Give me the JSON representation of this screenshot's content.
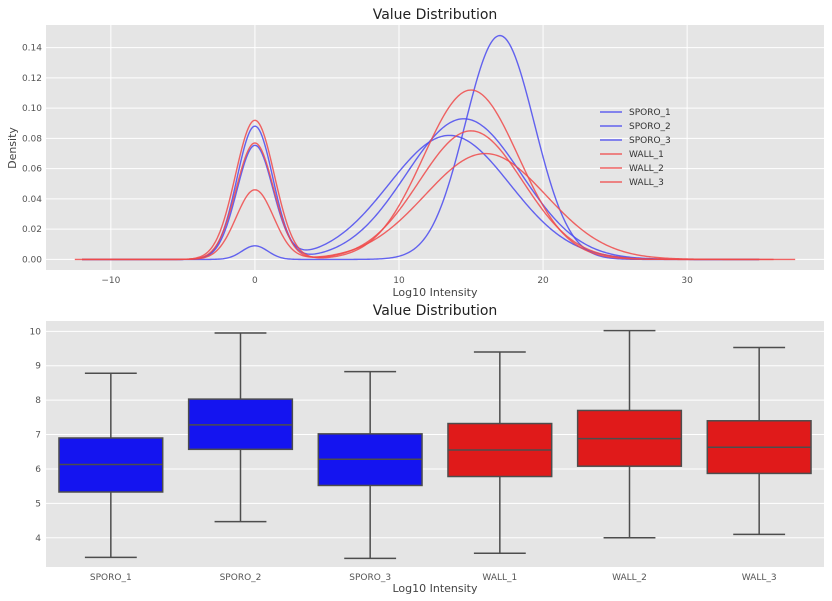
{
  "chart_data": [
    {
      "type": "line",
      "title": "Value Distribution",
      "xlabel": "Log10 Intensity",
      "ylabel": "Density",
      "xlim": [
        -14.5,
        39.5
      ],
      "ylim": [
        -0.007,
        0.155
      ],
      "xticks": [
        -10,
        0,
        10,
        20,
        30
      ],
      "yticks": [
        0.0,
        0.02,
        0.04,
        0.06,
        0.08,
        0.1,
        0.12,
        0.14
      ],
      "xtick_labels": [
        "−10",
        "0",
        "10",
        "20",
        "30"
      ],
      "ytick_labels": [
        "0.00",
        "0.02",
        "0.04",
        "0.06",
        "0.08",
        "0.10",
        "0.12",
        "0.14"
      ],
      "grid": true,
      "legend_position": "center-right",
      "series": [
        {
          "name": "SPORO_1",
          "color": "#4a4af0",
          "x_range": [
            -12,
            35
          ],
          "components": [
            {
              "mu": 0,
              "peak": 0.088,
              "sigma": 1.25
            },
            {
              "mu": 14.5,
              "peak": 0.093,
              "sigma": 4.0
            }
          ]
        },
        {
          "name": "SPORO_2",
          "color": "#4a4af0",
          "x_range": [
            -12,
            35
          ],
          "components": [
            {
              "mu": 0,
              "peak": 0.009,
              "sigma": 0.9
            },
            {
              "mu": 17,
              "peak": 0.148,
              "sigma": 2.4
            }
          ]
        },
        {
          "name": "SPORO_3",
          "color": "#4a4af0",
          "x_range": [
            -12,
            35
          ],
          "components": [
            {
              "mu": 0,
              "peak": 0.075,
              "sigma": 1.25
            },
            {
              "mu": 13.5,
              "peak": 0.082,
              "sigma": 4.2
            }
          ]
        },
        {
          "name": "WALL_1",
          "color": "#f04a4a",
          "x_range": [
            -12,
            35
          ],
          "components": [
            {
              "mu": 0,
              "peak": 0.092,
              "sigma": 1.35
            },
            {
              "mu": 15,
              "peak": 0.112,
              "sigma": 3.3
            }
          ]
        },
        {
          "name": "WALL_2",
          "color": "#f04a4a",
          "x_range": [
            -12.5,
            37.5
          ],
          "components": [
            {
              "mu": 0,
              "peak": 0.046,
              "sigma": 1.3
            },
            {
              "mu": 16,
              "peak": 0.07,
              "sigma": 4.2
            }
          ]
        },
        {
          "name": "WALL_3",
          "color": "#f04a4a",
          "x_range": [
            -12,
            36
          ],
          "components": [
            {
              "mu": 0,
              "peak": 0.077,
              "sigma": 1.3
            },
            {
              "mu": 15,
              "peak": 0.085,
              "sigma": 3.6
            }
          ]
        }
      ]
    },
    {
      "type": "box",
      "title": "Value Distribution",
      "xlabel": "Log10 Intensity",
      "ylabel": "",
      "ylim": [
        3.15,
        10.3
      ],
      "yticks": [
        4,
        5,
        6,
        7,
        8,
        9,
        10
      ],
      "ytick_labels": [
        "4",
        "5",
        "6",
        "7",
        "8",
        "9",
        "10"
      ],
      "grid": true,
      "categories": [
        "SPORO_1",
        "SPORO_2",
        "SPORO_3",
        "WALL_1",
        "WALL_2",
        "WALL_3"
      ],
      "boxes": [
        {
          "label": "SPORO_1",
          "whislo": 3.43,
          "q1": 5.33,
          "med": 6.13,
          "q3": 6.9,
          "whishi": 8.78,
          "color": "#1414f0"
        },
        {
          "label": "SPORO_2",
          "whislo": 4.47,
          "q1": 6.57,
          "med": 7.28,
          "q3": 8.03,
          "whishi": 9.95,
          "color": "#1414f0"
        },
        {
          "label": "SPORO_3",
          "whislo": 3.4,
          "q1": 5.52,
          "med": 6.28,
          "q3": 7.02,
          "whishi": 8.83,
          "color": "#1414f0"
        },
        {
          "label": "WALL_1",
          "whislo": 3.55,
          "q1": 5.78,
          "med": 6.55,
          "q3": 7.32,
          "whishi": 9.4,
          "color": "#e01a1a"
        },
        {
          "label": "WALL_2",
          "whislo": 4.0,
          "q1": 6.08,
          "med": 6.88,
          "q3": 7.7,
          "whishi": 10.02,
          "color": "#e01a1a"
        },
        {
          "label": "WALL_3",
          "whislo": 4.1,
          "q1": 5.87,
          "med": 6.63,
          "q3": 7.4,
          "whishi": 9.53,
          "color": "#e01a1a"
        }
      ]
    }
  ]
}
